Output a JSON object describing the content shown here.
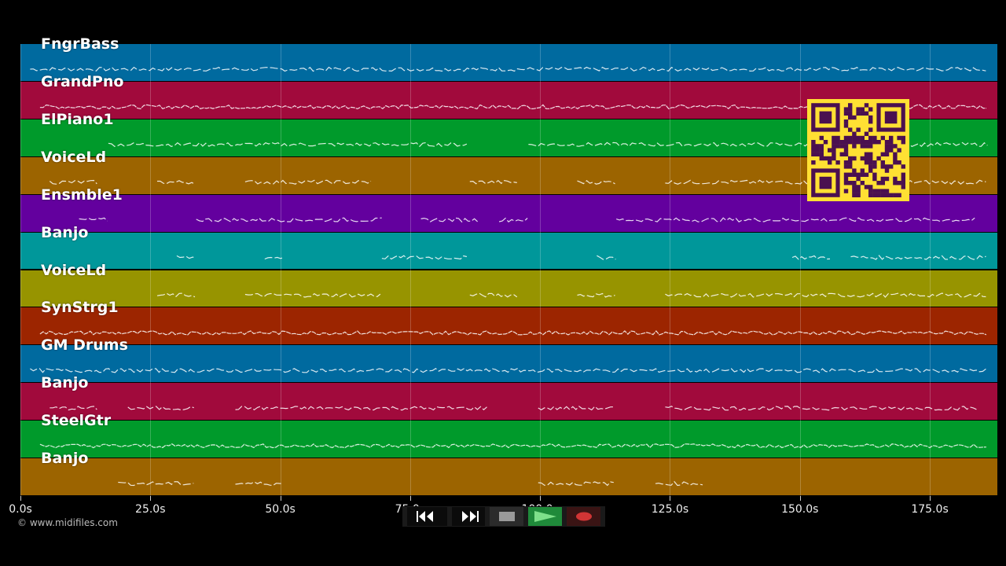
{
  "tracks": [
    {
      "name": "FngrBass",
      "color": "#006a9f"
    },
    {
      "name": "GrandPno",
      "color": "#a10a3c"
    },
    {
      "name": "ElPiano1",
      "color": "#009a2b"
    },
    {
      "name": "VoiceLd",
      "color": "#9c6400"
    },
    {
      "name": "Ensmble1",
      "color": "#63009e"
    },
    {
      "name": "Banjo",
      "color": "#00979a"
    },
    {
      "name": "VoiceLd",
      "color": "#979400"
    },
    {
      "name": "SynStrg1",
      "color": "#9c2500"
    },
    {
      "name": "GM Drums",
      "color": "#006a9f"
    },
    {
      "name": "Banjo",
      "color": "#a10a3c"
    },
    {
      "name": "SteelGtr",
      "color": "#009a2b"
    },
    {
      "name": "Banjo",
      "color": "#9c6400"
    }
  ],
  "timeline": {
    "ticks": [
      "0.0s",
      "25.0s",
      "50.0s",
      "75.0s",
      "100.0s",
      "125.0s",
      "150.0s",
      "175.0s"
    ],
    "tick_values": [
      0,
      25,
      50,
      75,
      100,
      125,
      150,
      175
    ],
    "max_seconds": 188
  },
  "copyright": "© www.midifiles.com",
  "transport": {
    "rewind_icon": "rewind-icon",
    "fast_forward_icon": "fast-forward-icon",
    "stop_icon": "stop-icon",
    "play_icon": "play-icon",
    "record_icon": "record-icon",
    "play_color": "#1f8a3a",
    "record_color": "#d03535"
  },
  "qr_code": {
    "icon": "qr-code-icon",
    "colors": [
      "#ffe033",
      "#4a1050"
    ]
  }
}
